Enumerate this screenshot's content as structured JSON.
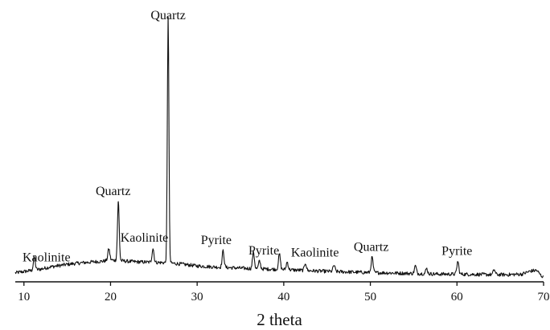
{
  "chart_data": {
    "type": "line",
    "xlabel": "2 theta",
    "ylabel": "",
    "title": "",
    "xlim": [
      9,
      70
    ],
    "ylim": [
      0,
      100
    ],
    "xticks": [
      10,
      20,
      30,
      40,
      50,
      60,
      70
    ],
    "grid": false,
    "legend": "none",
    "line_color": "#111111",
    "baseline": [
      [
        9.0,
        3.5
      ],
      [
        10.0,
        4.0
      ],
      [
        11.0,
        4.5
      ],
      [
        12.0,
        5.0
      ],
      [
        13.0,
        5.8
      ],
      [
        14.0,
        6.3
      ],
      [
        15.0,
        6.8
      ],
      [
        16.0,
        7.2
      ],
      [
        17.0,
        7.5
      ],
      [
        18.0,
        7.8
      ],
      [
        19.0,
        8.0
      ],
      [
        20.0,
        8.5
      ],
      [
        21.0,
        8.3
      ],
      [
        22.0,
        8.0
      ],
      [
        23.0,
        7.8
      ],
      [
        24.0,
        7.7
      ],
      [
        25.0,
        7.6
      ],
      [
        26.0,
        7.5
      ],
      [
        27.0,
        7.3
      ],
      [
        28.0,
        7.0
      ],
      [
        29.0,
        6.6
      ],
      [
        30.0,
        6.2
      ],
      [
        32.0,
        5.8
      ],
      [
        34.0,
        5.5
      ],
      [
        36.0,
        5.2
      ],
      [
        38.0,
        5.0
      ],
      [
        40.0,
        4.8
      ],
      [
        42.0,
        4.5
      ],
      [
        44.0,
        4.2
      ],
      [
        46.0,
        4.0
      ],
      [
        48.0,
        3.8
      ],
      [
        50.0,
        3.6
      ],
      [
        52.0,
        3.5
      ],
      [
        54.0,
        3.3
      ],
      [
        56.0,
        3.2
      ],
      [
        58.0,
        3.0
      ],
      [
        60.0,
        3.0
      ],
      [
        62.0,
        2.9
      ],
      [
        64.0,
        2.8
      ],
      [
        66.0,
        2.8
      ],
      [
        67.5,
        3.0
      ],
      [
        68.5,
        4.2
      ],
      [
        69.2,
        4.5
      ],
      [
        69.7,
        2.5
      ],
      [
        70.0,
        1.8
      ]
    ],
    "peaks": [
      {
        "x": 11.2,
        "height": 5.0
      },
      {
        "x": 19.8,
        "height": 4.5
      },
      {
        "x": 20.9,
        "height": 23.0
      },
      {
        "x": 24.9,
        "height": 5.5
      },
      {
        "x": 26.65,
        "height": 96.0
      },
      {
        "x": 33.0,
        "height": 6.5
      },
      {
        "x": 36.5,
        "height": 6.5
      },
      {
        "x": 37.2,
        "height": 3.0
      },
      {
        "x": 39.5,
        "height": 6.0
      },
      {
        "x": 40.4,
        "height": 3.0
      },
      {
        "x": 42.5,
        "height": 3.0
      },
      {
        "x": 45.8,
        "height": 2.5
      },
      {
        "x": 50.2,
        "height": 6.0
      },
      {
        "x": 55.2,
        "height": 3.0
      },
      {
        "x": 56.5,
        "height": 2.0
      },
      {
        "x": 60.1,
        "height": 5.0
      },
      {
        "x": 64.3,
        "height": 2.0
      }
    ],
    "annotations": [
      {
        "text": "Quartz",
        "x": 26.65
      },
      {
        "text": "Quartz",
        "x": 20.3
      },
      {
        "text": "Kaolinite",
        "x": 12.6
      },
      {
        "text": "Kaolinite",
        "x": 23.9
      },
      {
        "text": "Pyrite",
        "x": 32.2
      },
      {
        "text": "Pyrite",
        "x": 37.7
      },
      {
        "text": "Kaolinite",
        "x": 43.6
      },
      {
        "text": "Quartz",
        "x": 50.1
      },
      {
        "text": "Pyrite",
        "x": 60.0
      }
    ]
  }
}
